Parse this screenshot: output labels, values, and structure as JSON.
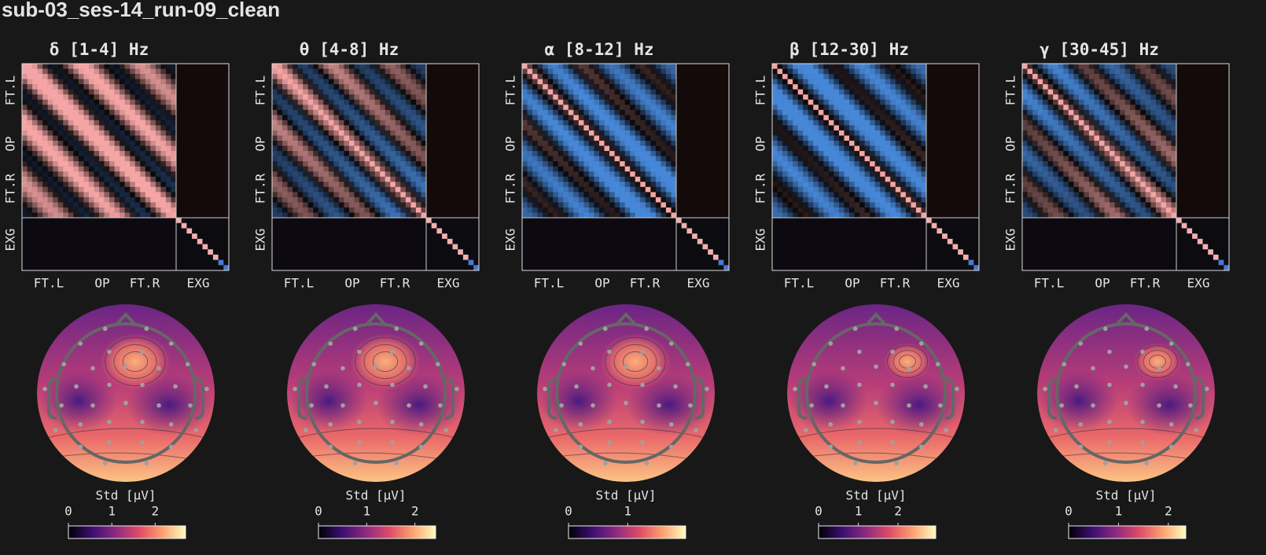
{
  "title": "sub-03_ses-14_run-09_clean",
  "matrix_labels": [
    "FT.L",
    "OP",
    "FT.R",
    "EXG"
  ],
  "colorbar_label": "Std [μV]",
  "panels": [
    {
      "title": "δ [1-4] Hz",
      "colorbar": {
        "lim": [
          0,
          2.7
        ],
        "ticks": [
          0,
          1,
          2
        ]
      }
    },
    {
      "title": "θ [4-8] Hz",
      "colorbar": {
        "lim": [
          0,
          2.43
        ],
        "ticks": [
          0,
          1,
          2
        ]
      }
    },
    {
      "title": "α [8-12] Hz",
      "colorbar": {
        "lim": [
          0,
          1.98
        ],
        "ticks": [
          0,
          1
        ]
      }
    },
    {
      "title": "β [12-30] Hz",
      "colorbar": {
        "lim": [
          0,
          2.95
        ],
        "ticks": [
          0,
          1,
          2
        ]
      }
    },
    {
      "title": "γ [30-45] Hz",
      "colorbar": {
        "lim": [
          0,
          2.35
        ],
        "ticks": [
          0,
          1,
          2
        ]
      }
    }
  ]
}
